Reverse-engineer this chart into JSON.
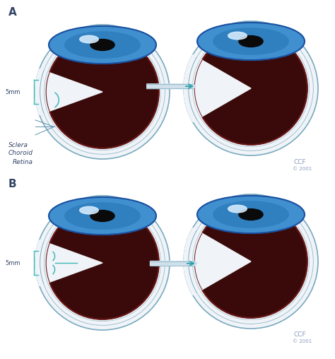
{
  "bg_color": "#ffffff",
  "sclera_fill": "#f0f4f8",
  "sclera_edge": "#7aaabf",
  "sclera_edge2": "#a0c0d0",
  "vitreous_fill": "#3a0a0a",
  "retina_edge": "#6a1818",
  "choroid_fill": "#4a0e0e",
  "cornea_outer": "#1a50a0",
  "cornea_mid": "#4090d0",
  "cornea_inner": "#3080c0",
  "cornea_pupil": "#0a0a0a",
  "cornea_highlight": "#ddf0ff",
  "teal": "#40b8b8",
  "teal2": "#30a0a8",
  "label_dark": "#334466",
  "line_col": "#6090b0",
  "label_A": "A",
  "label_B": "B",
  "label_5mm": "5mm",
  "label_sclera": "Sclera",
  "label_choroid": "Choroid",
  "label_retina": "Retina",
  "ccf_text": "CCF",
  "ccf_year": "© 2001"
}
